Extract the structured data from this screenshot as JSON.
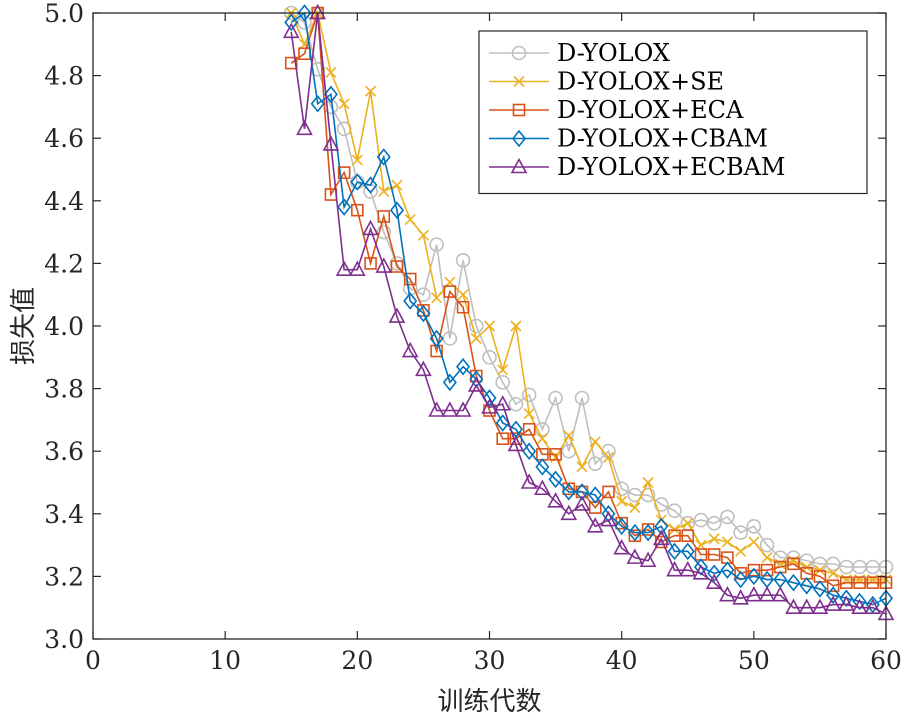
{
  "chart_data": {
    "type": "line",
    "xlabel": "训练代数",
    "ylabel": "损失值",
    "xlim": [
      0,
      60
    ],
    "ylim": [
      3.0,
      5.0
    ],
    "xticks": [
      0,
      10,
      20,
      30,
      40,
      50,
      60
    ],
    "yticks": [
      3.0,
      3.2,
      3.4,
      3.6,
      3.8,
      4.0,
      4.2,
      4.4,
      4.6,
      4.8,
      5.0
    ],
    "xtick_labels": [
      "0",
      "10",
      "20",
      "30",
      "40",
      "50",
      "60"
    ],
    "ytick_labels": [
      "3.0",
      "3.2",
      "3.4",
      "3.6",
      "3.8",
      "4.0",
      "4.2",
      "4.4",
      "4.6",
      "4.8",
      "5.0"
    ],
    "grid": false,
    "legend_position": "top-right",
    "x": [
      15,
      16,
      17,
      18,
      19,
      20,
      21,
      22,
      23,
      24,
      25,
      26,
      27,
      28,
      29,
      30,
      31,
      32,
      33,
      34,
      35,
      36,
      37,
      38,
      39,
      40,
      41,
      42,
      43,
      44,
      45,
      46,
      47,
      48,
      49,
      50,
      51,
      52,
      53,
      54,
      55,
      56,
      57,
      58,
      59,
      60
    ],
    "series": [
      {
        "name": "D-YOLOX",
        "marker": "circle",
        "color": "#bfbfbf",
        "values": [
          5.0,
          4.97,
          4.82,
          4.7,
          4.63,
          4.46,
          4.43,
          4.3,
          4.2,
          4.12,
          4.1,
          4.26,
          3.96,
          4.21,
          4.0,
          3.9,
          3.82,
          3.75,
          3.78,
          3.67,
          3.77,
          3.6,
          3.77,
          3.56,
          3.6,
          3.48,
          3.46,
          3.46,
          3.43,
          3.41,
          3.37,
          3.38,
          3.37,
          3.39,
          3.34,
          3.36,
          3.3,
          3.26,
          3.26,
          3.25,
          3.24,
          3.24,
          3.23,
          3.23,
          3.23,
          3.23
        ]
      },
      {
        "name": "D-YOLOX+SE",
        "marker": "x",
        "color": "#edb120",
        "values": [
          5.0,
          4.9,
          5.0,
          4.81,
          4.71,
          4.53,
          4.75,
          4.43,
          4.45,
          4.34,
          4.29,
          4.09,
          4.14,
          4.1,
          3.96,
          4.0,
          3.86,
          4.0,
          3.72,
          3.64,
          3.58,
          3.65,
          3.55,
          3.63,
          3.58,
          3.44,
          3.42,
          3.5,
          3.38,
          3.35,
          3.37,
          3.3,
          3.32,
          3.31,
          3.28,
          3.31,
          3.26,
          3.24,
          3.25,
          3.23,
          3.22,
          3.21,
          3.19,
          3.19,
          3.19,
          3.19
        ]
      },
      {
        "name": "D-YOLOX+ECA",
        "marker": "square",
        "color": "#d95319",
        "values": [
          4.84,
          4.87,
          5.0,
          4.42,
          4.49,
          4.37,
          4.2,
          4.35,
          4.19,
          4.15,
          4.05,
          3.92,
          4.11,
          4.06,
          3.84,
          3.73,
          3.64,
          3.64,
          3.67,
          3.59,
          3.59,
          3.48,
          3.47,
          3.42,
          3.47,
          3.37,
          3.33,
          3.35,
          3.31,
          3.33,
          3.33,
          3.27,
          3.27,
          3.26,
          3.21,
          3.22,
          3.22,
          3.23,
          3.24,
          3.21,
          3.2,
          3.17,
          3.18,
          3.18,
          3.18,
          3.18
        ]
      },
      {
        "name": "D-YOLOX+CBAM",
        "marker": "diamond",
        "color": "#0072bd",
        "values": [
          4.97,
          5.0,
          4.71,
          4.74,
          4.38,
          4.46,
          4.45,
          4.54,
          4.37,
          4.08,
          4.04,
          3.96,
          3.82,
          3.87,
          3.83,
          3.77,
          3.69,
          3.67,
          3.6,
          3.55,
          3.51,
          3.47,
          3.47,
          3.46,
          3.4,
          3.36,
          3.34,
          3.34,
          3.36,
          3.28,
          3.28,
          3.23,
          3.21,
          3.22,
          3.19,
          3.2,
          3.19,
          3.19,
          3.18,
          3.17,
          3.16,
          3.14,
          3.13,
          3.12,
          3.11,
          3.13
        ]
      },
      {
        "name": "D-YOLOX+ECBAM",
        "marker": "triangle",
        "color": "#7e2f8e",
        "values": [
          4.94,
          4.63,
          5.0,
          4.58,
          4.18,
          4.18,
          4.31,
          4.19,
          4.03,
          3.92,
          3.86,
          3.73,
          3.73,
          3.73,
          3.81,
          3.74,
          3.75,
          3.62,
          3.5,
          3.48,
          3.44,
          3.4,
          3.43,
          3.36,
          3.38,
          3.29,
          3.26,
          3.25,
          3.32,
          3.22,
          3.22,
          3.21,
          3.18,
          3.14,
          3.13,
          3.14,
          3.14,
          3.14,
          3.1,
          3.1,
          3.1,
          3.11,
          3.11,
          3.1,
          3.1,
          3.08
        ]
      }
    ]
  }
}
